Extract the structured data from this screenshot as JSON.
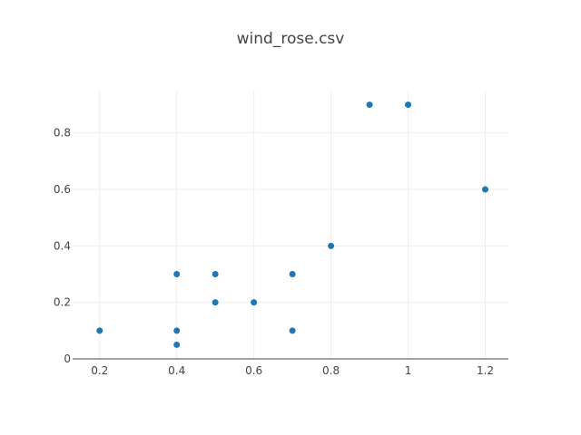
{
  "chart_data": {
    "type": "scatter",
    "title": "wind_rose.csv",
    "xlabel": "",
    "ylabel": "",
    "xlim": [
      0.13,
      1.26
    ],
    "ylim": [
      0,
      0.95
    ],
    "x_ticks": [
      0.2,
      0.4,
      0.6,
      0.8,
      1.0,
      1.2
    ],
    "x_tick_labels": [
      "0.2",
      "0.4",
      "0.6",
      "0.8",
      "1",
      "1.2"
    ],
    "y_ticks": [
      0,
      0.2,
      0.4,
      0.6,
      0.8
    ],
    "y_tick_labels": [
      "0",
      "0.2",
      "0.4",
      "0.6",
      "0.8"
    ],
    "grid": true,
    "marker_color": "#1f77b4",
    "series": [
      {
        "points": [
          {
            "x": 0.2,
            "y": 0.1
          },
          {
            "x": 0.4,
            "y": 0.3
          },
          {
            "x": 0.4,
            "y": 0.1
          },
          {
            "x": 0.4,
            "y": 0.05
          },
          {
            "x": 0.5,
            "y": 0.3
          },
          {
            "x": 0.5,
            "y": 0.2
          },
          {
            "x": 0.6,
            "y": 0.2
          },
          {
            "x": 0.7,
            "y": 0.3
          },
          {
            "x": 0.7,
            "y": 0.1
          },
          {
            "x": 0.8,
            "y": 0.4
          },
          {
            "x": 0.9,
            "y": 0.9
          },
          {
            "x": 1.0,
            "y": 0.9
          },
          {
            "x": 1.2,
            "y": 0.6
          }
        ]
      }
    ]
  }
}
